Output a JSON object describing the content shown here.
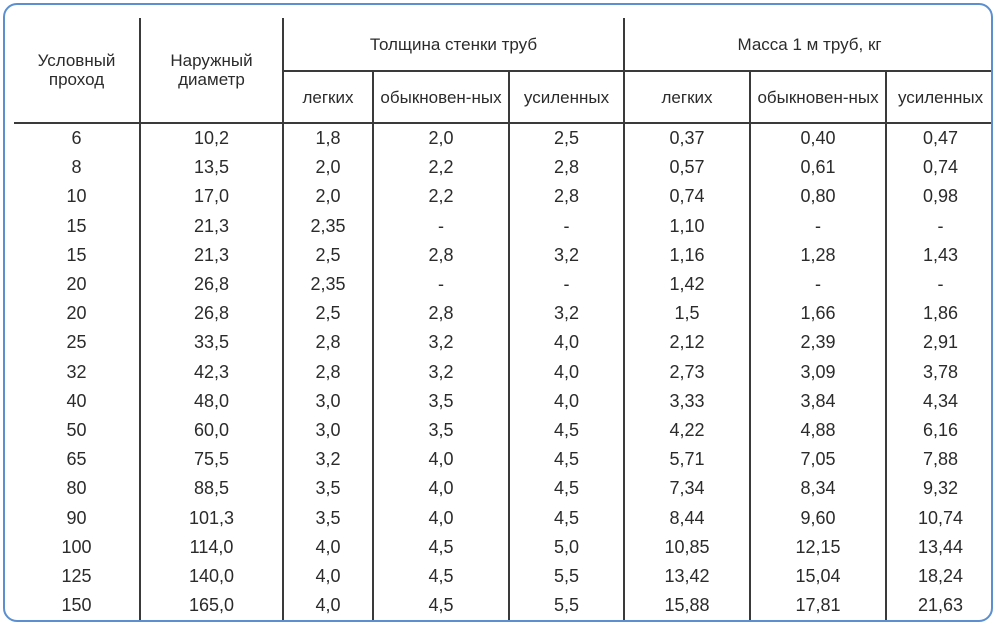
{
  "header": {
    "col_conditional_pass": "Условный проход",
    "col_outer_diameter": "Наружный диаметр",
    "group_wall_thickness": "Толщина стенки труб",
    "group_mass": "Масса 1 м труб, кг",
    "sub_light": "легких",
    "sub_ordinary": "обыкновен-ных",
    "sub_reinforced": "усиленных"
  },
  "rows": [
    [
      "6",
      "10,2",
      "1,8",
      "2,0",
      "2,5",
      "0,37",
      "0,40",
      "0,47"
    ],
    [
      "8",
      "13,5",
      "2,0",
      "2,2",
      "2,8",
      "0,57",
      "0,61",
      "0,74"
    ],
    [
      "10",
      "17,0",
      "2,0",
      "2,2",
      "2,8",
      "0,74",
      "0,80",
      "0,98"
    ],
    [
      "15",
      "21,3",
      "2,35",
      "-",
      "-",
      "1,10",
      "-",
      "-"
    ],
    [
      "15",
      "21,3",
      "2,5",
      "2,8",
      "3,2",
      "1,16",
      "1,28",
      "1,43"
    ],
    [
      "20",
      "26,8",
      "2,35",
      "-",
      "-",
      "1,42",
      "-",
      "-"
    ],
    [
      "20",
      "26,8",
      "2,5",
      "2,8",
      "3,2",
      "1,5",
      "1,66",
      "1,86"
    ],
    [
      "25",
      "33,5",
      "2,8",
      "3,2",
      "4,0",
      "2,12",
      "2,39",
      "2,91"
    ],
    [
      "32",
      "42,3",
      "2,8",
      "3,2",
      "4,0",
      "2,73",
      "3,09",
      "3,78"
    ],
    [
      "40",
      "48,0",
      "3,0",
      "3,5",
      "4,0",
      "3,33",
      "3,84",
      "4,34"
    ],
    [
      "50",
      "60,0",
      "3,0",
      "3,5",
      "4,5",
      "4,22",
      "4,88",
      "6,16"
    ],
    [
      "65",
      "75,5",
      "3,2",
      "4,0",
      "4,5",
      "5,71",
      "7,05",
      "7,88"
    ],
    [
      "80",
      "88,5",
      "3,5",
      "4,0",
      "4,5",
      "7,34",
      "8,34",
      "9,32"
    ],
    [
      "90",
      "101,3",
      "3,5",
      "4,0",
      "4,5",
      "8,44",
      "9,60",
      "10,74"
    ],
    [
      "100",
      "114,0",
      "4,0",
      "4,5",
      "5,0",
      "10,85",
      "12,15",
      "13,44"
    ],
    [
      "125",
      "140,0",
      "4,0",
      "4,5",
      "5,5",
      "13,42",
      "15,04",
      "18,24"
    ],
    [
      "150",
      "165,0",
      "4,0",
      "4,5",
      "5,5",
      "15,88",
      "17,81",
      "21,63"
    ]
  ],
  "colors": {
    "frame_border": "#5b8fd0",
    "grid_lines": "#3a3a3a",
    "text": "#2b2b2b"
  }
}
